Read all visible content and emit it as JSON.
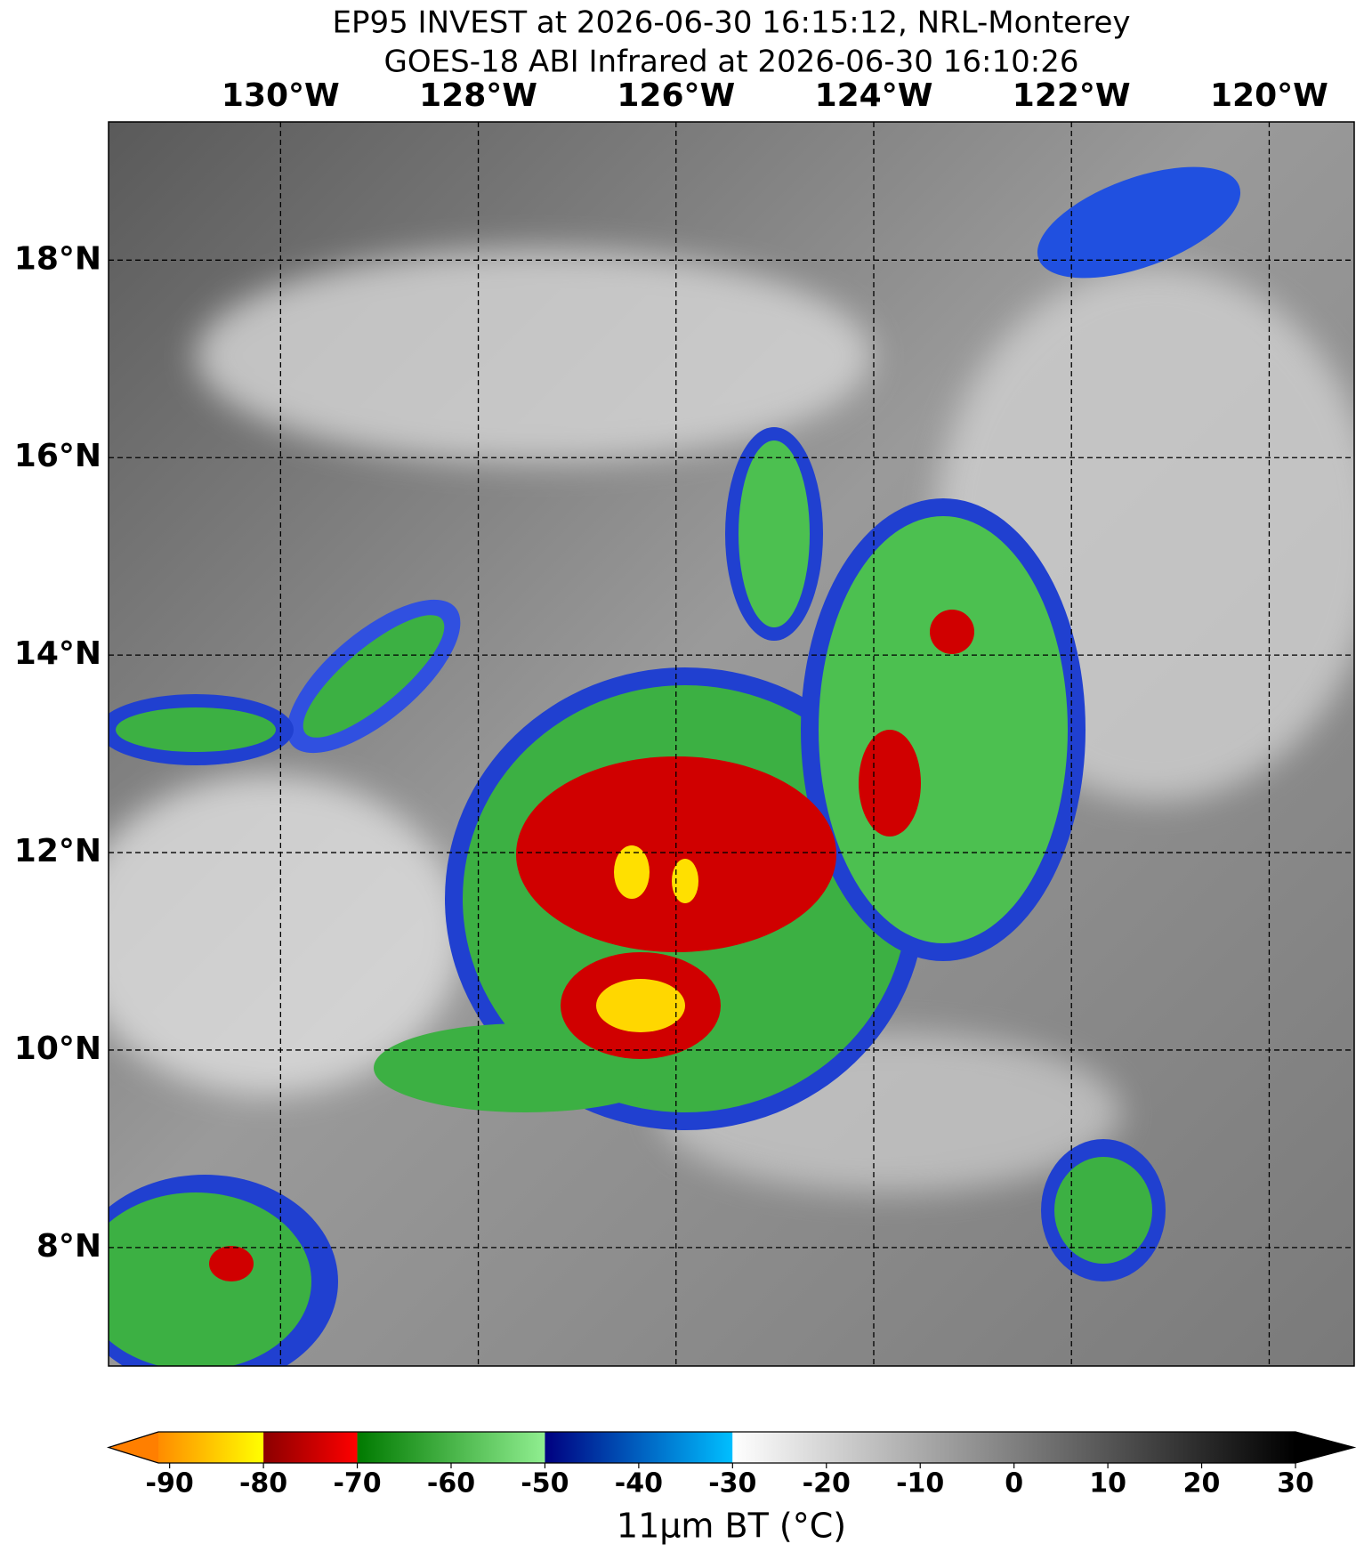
{
  "map": {
    "title_lines": [
      "EP95 INVEST at 2026-06-30 16:15:12, NRL-Monterey",
      "GOES-18 ABI Infrared at 2026-06-30 16:10:26"
    ],
    "lon_range": [
      -131.74,
      -119.14
    ],
    "lat_range": [
      6.8,
      19.4
    ],
    "lon_ticks": [
      {
        "value": -130,
        "label": "130°W"
      },
      {
        "value": -128,
        "label": "128°W"
      },
      {
        "value": -126,
        "label": "126°W"
      },
      {
        "value": -124,
        "label": "124°W"
      },
      {
        "value": -122,
        "label": "122°W"
      },
      {
        "value": -120,
        "label": "120°W"
      }
    ],
    "lat_ticks": [
      {
        "value": 8,
        "label": "8°N"
      },
      {
        "value": 10,
        "label": "10°N"
      },
      {
        "value": 12,
        "label": "12°N"
      },
      {
        "value": 14,
        "label": "14°N"
      },
      {
        "value": 16,
        "label": "16°N"
      },
      {
        "value": 18,
        "label": "18°N"
      }
    ],
    "colorbar": {
      "range": [
        -91.2,
        30
      ],
      "under_color": "#ff7f00",
      "over_color": "#000000",
      "segments": [
        {
          "from": -91.2,
          "to": -80,
          "colors": [
            "#ff8c00",
            "#ffff00"
          ]
        },
        {
          "from": -80,
          "to": -70,
          "colors": [
            "#8b0000",
            "#ff0000"
          ]
        },
        {
          "from": -70,
          "to": -50,
          "colors": [
            "#007a00",
            "#90ee90"
          ]
        },
        {
          "from": -50,
          "to": -30,
          "colors": [
            "#000080",
            "#00bfff"
          ]
        },
        {
          "from": -30,
          "to": 30,
          "colors": [
            "#ffffff",
            "#000000"
          ]
        }
      ],
      "ticks": [
        -90,
        -80,
        -70,
        -60,
        -50,
        -40,
        -30,
        -20,
        -10,
        0,
        10,
        20,
        30
      ],
      "label": "11μm BT (°C)"
    }
  }
}
